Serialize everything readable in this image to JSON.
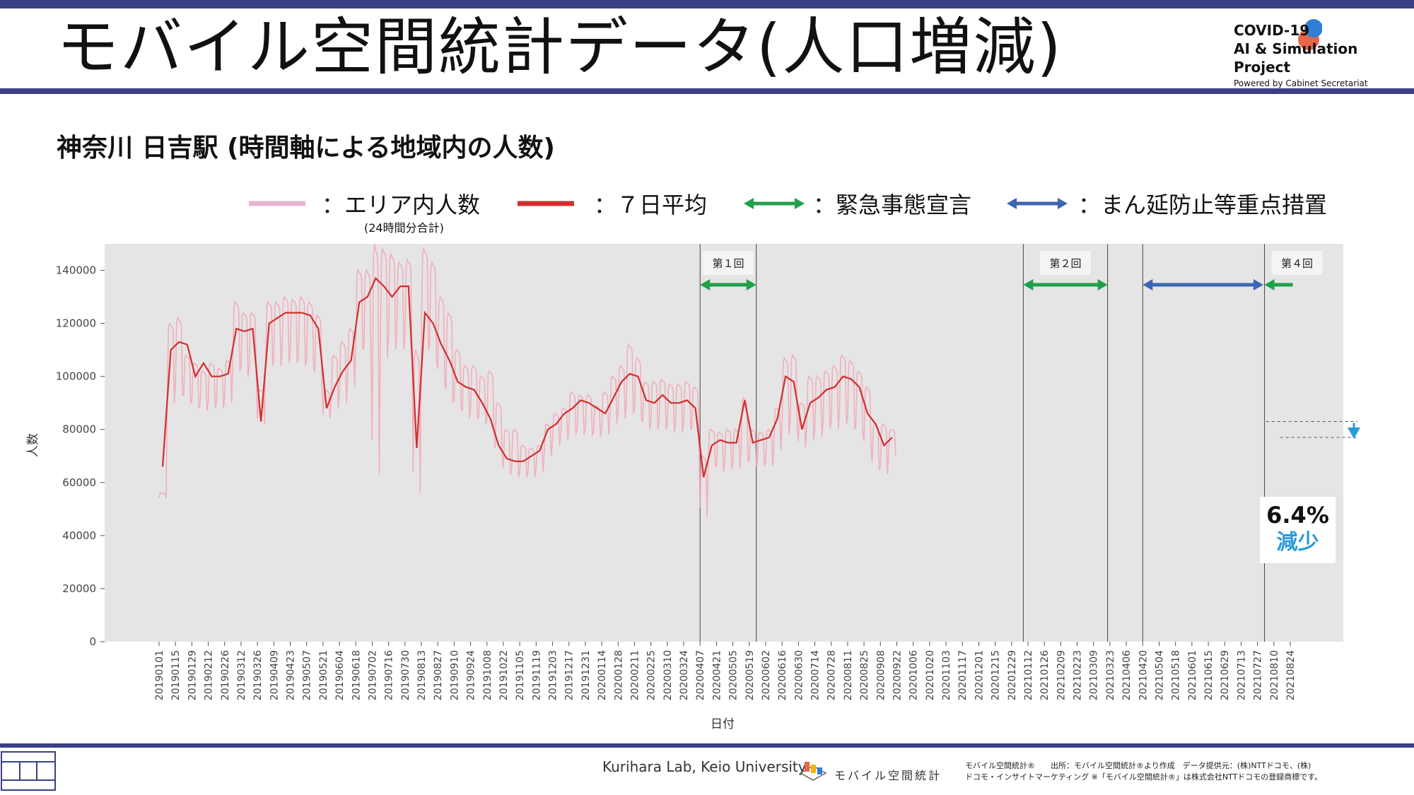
{
  "slide": {
    "title": "モバイル空間統計データ(人口増減)",
    "project": {
      "line1": "COVID-19",
      "line2": "AI & Simulation Project",
      "line3": "Powered by Cabinet Secretariat"
    }
  },
  "chart_title": "神奈川 日吉駅 (時間軸による地域内の人数)",
  "legend": {
    "area_label": "：エリア内人数",
    "area_note": "(24時間分合計)",
    "avg_label": "：７日平均",
    "emergency_label": "：緊急事態宣言",
    "priority_label": "：まん延防止等重点措置"
  },
  "callout": {
    "percent": "6.4%",
    "word": "減少"
  },
  "footer": {
    "lab": "Kurihara Lab, Keio University",
    "brand": "モバイル空間統計",
    "source_line1": "モバイル空間統計®　　出所：モバイル空間統計®より作成　データ提供元：(株)NTTドコモ、(株)",
    "source_line2": "ドコモ・インサイトマーケティング ※「モバイル空間統計®」は株式会社NTTドコモの登録商標です。"
  },
  "colors": {
    "area": "#f4a6b6",
    "avg": "#d12e2e",
    "emergency": "#1fa04a",
    "priority": "#3c66b0",
    "plot_bg": "#e5e5e5",
    "callout_text": "#2b9bd8"
  },
  "chart_data": {
    "type": "line",
    "xlabel": "日付",
    "ylabel": "人数",
    "ylim": [
      0,
      150000
    ],
    "yticks": [
      0,
      20000,
      40000,
      60000,
      80000,
      100000,
      120000,
      140000
    ],
    "x_tick_labels": [
      "20190101",
      "20190115",
      "20190129",
      "20190212",
      "20190226",
      "20190312",
      "20190326",
      "20190409",
      "20190423",
      "20190507",
      "20190521",
      "20190604",
      "20190618",
      "20190702",
      "20190716",
      "20190730",
      "20190813",
      "20190827",
      "20190910",
      "20190924",
      "20191008",
      "20191022",
      "20191105",
      "20191119",
      "20191203",
      "20191217",
      "20191231",
      "20200114",
      "20200128",
      "20200211",
      "20200225",
      "20200310",
      "20200324",
      "20200407",
      "20200421",
      "20200505",
      "20200519",
      "20200602",
      "20200616",
      "20200630",
      "20200714",
      "20200728",
      "20200811",
      "20200825",
      "20200908",
      "20200922",
      "20201006",
      "20201020",
      "20201103",
      "20201117",
      "20201201",
      "20201215",
      "20201229",
      "20210112",
      "20210126",
      "20210209",
      "20210223",
      "20210309",
      "20210323",
      "20210406",
      "20210420",
      "20210504",
      "20210518",
      "20210601",
      "20210615",
      "20210629",
      "20210713",
      "20210727",
      "20210810",
      "20210824"
    ],
    "series": [
      {
        "name": "エリア内人数",
        "freq": "daily",
        "start": "20190101",
        "weekly_high": [
          56000,
          120000,
          122000,
          108000,
          105000,
          102000,
          105000,
          103000,
          106000,
          128000,
          124000,
          124000,
          95000,
          128000,
          128000,
          130000,
          129000,
          130000,
          128000,
          123000,
          95000,
          108000,
          113000,
          118000,
          140000,
          140000,
          150000,
          148000,
          146000,
          143000,
          144000,
          110000,
          148000,
          143000,
          130000,
          124000,
          110000,
          104000,
          104000,
          100000,
          102000,
          90000,
          80000,
          80000,
          74000,
          73000,
          74000,
          82000,
          86000,
          88000,
          94000,
          93000,
          93000,
          89000,
          94000,
          100000,
          104000,
          112000,
          107000,
          98000,
          98000,
          99000,
          97000,
          97000,
          98000,
          96000,
          70000,
          80000,
          79000,
          80000,
          80000,
          92000,
          80000,
          79000,
          80000,
          88000,
          107000,
          108000,
          90000,
          100000,
          100000,
          102000,
          104000,
          108000,
          106000,
          102000,
          96000,
          82000,
          82000,
          80000
        ],
        "weekly_low": [
          54000,
          90000,
          93000,
          90000,
          88000,
          87000,
          88000,
          88000,
          90000,
          102000,
          100000,
          100000,
          82000,
          104000,
          104000,
          105000,
          105000,
          104000,
          103000,
          98000,
          84000,
          88000,
          90000,
          96000,
          110000,
          106000,
          63000,
          107000,
          110000,
          110000,
          110000,
          56000,
          110000,
          106000,
          98000,
          90000,
          88000,
          84000,
          84000,
          82000,
          80000,
          70000,
          63000,
          62000,
          62000,
          62000,
          64000,
          70000,
          74000,
          76000,
          78000,
          78000,
          78000,
          77000,
          78000,
          82000,
          84000,
          86000,
          84000,
          80000,
          80000,
          80000,
          79000,
          79000,
          80000,
          78000,
          47000,
          66000,
          64000,
          65000,
          65000,
          68000,
          66000,
          66000,
          66000,
          72000,
          78000,
          80000,
          73000,
          76000,
          77000,
          80000,
          80000,
          82000,
          80000,
          78000,
          72000,
          65000,
          63000,
          70000
        ]
      },
      {
        "name": "７日平均",
        "freq": "weekly",
        "start": "20190101",
        "values": [
          66000,
          110000,
          113000,
          112000,
          100000,
          105000,
          100000,
          100000,
          101000,
          118000,
          117000,
          118000,
          83000,
          120000,
          122000,
          124000,
          124000,
          124000,
          123000,
          118000,
          88000,
          96000,
          102000,
          106000,
          128000,
          130000,
          137000,
          134000,
          130000,
          134000,
          134000,
          73000,
          124000,
          120000,
          112000,
          106000,
          98000,
          96000,
          95000,
          90000,
          84000,
          74000,
          69000,
          68000,
          68000,
          70000,
          72000,
          80000,
          82000,
          86000,
          88000,
          91000,
          90000,
          88000,
          86000,
          92000,
          98000,
          101000,
          100000,
          91000,
          90000,
          93000,
          90000,
          90000,
          91000,
          88000,
          62000,
          74000,
          76000,
          75000,
          75000,
          91000,
          75000,
          76000,
          77000,
          84000,
          100000,
          98000,
          80000,
          90000,
          92000,
          95000,
          96000,
          100000,
          99000,
          96000,
          86000,
          82000,
          74000,
          77000
        ]
      }
    ],
    "periods": [
      {
        "type": "緊急事態宣言",
        "label": "第１回",
        "start": "20200407",
        "end": "20200525"
      },
      {
        "type": "緊急事態宣言",
        "label": "第２回",
        "start": "20210108",
        "end": "20210321"
      },
      {
        "type": "まん延防止等重点措置",
        "label": "",
        "start": "20210420",
        "end": "20210801"
      },
      {
        "type": "緊急事態宣言",
        "label": "第４回",
        "start": "20210802",
        "end": "20210831"
      }
    ],
    "annotation": {
      "from": 83000,
      "to": 77000,
      "text": "6.4% 減少"
    }
  }
}
